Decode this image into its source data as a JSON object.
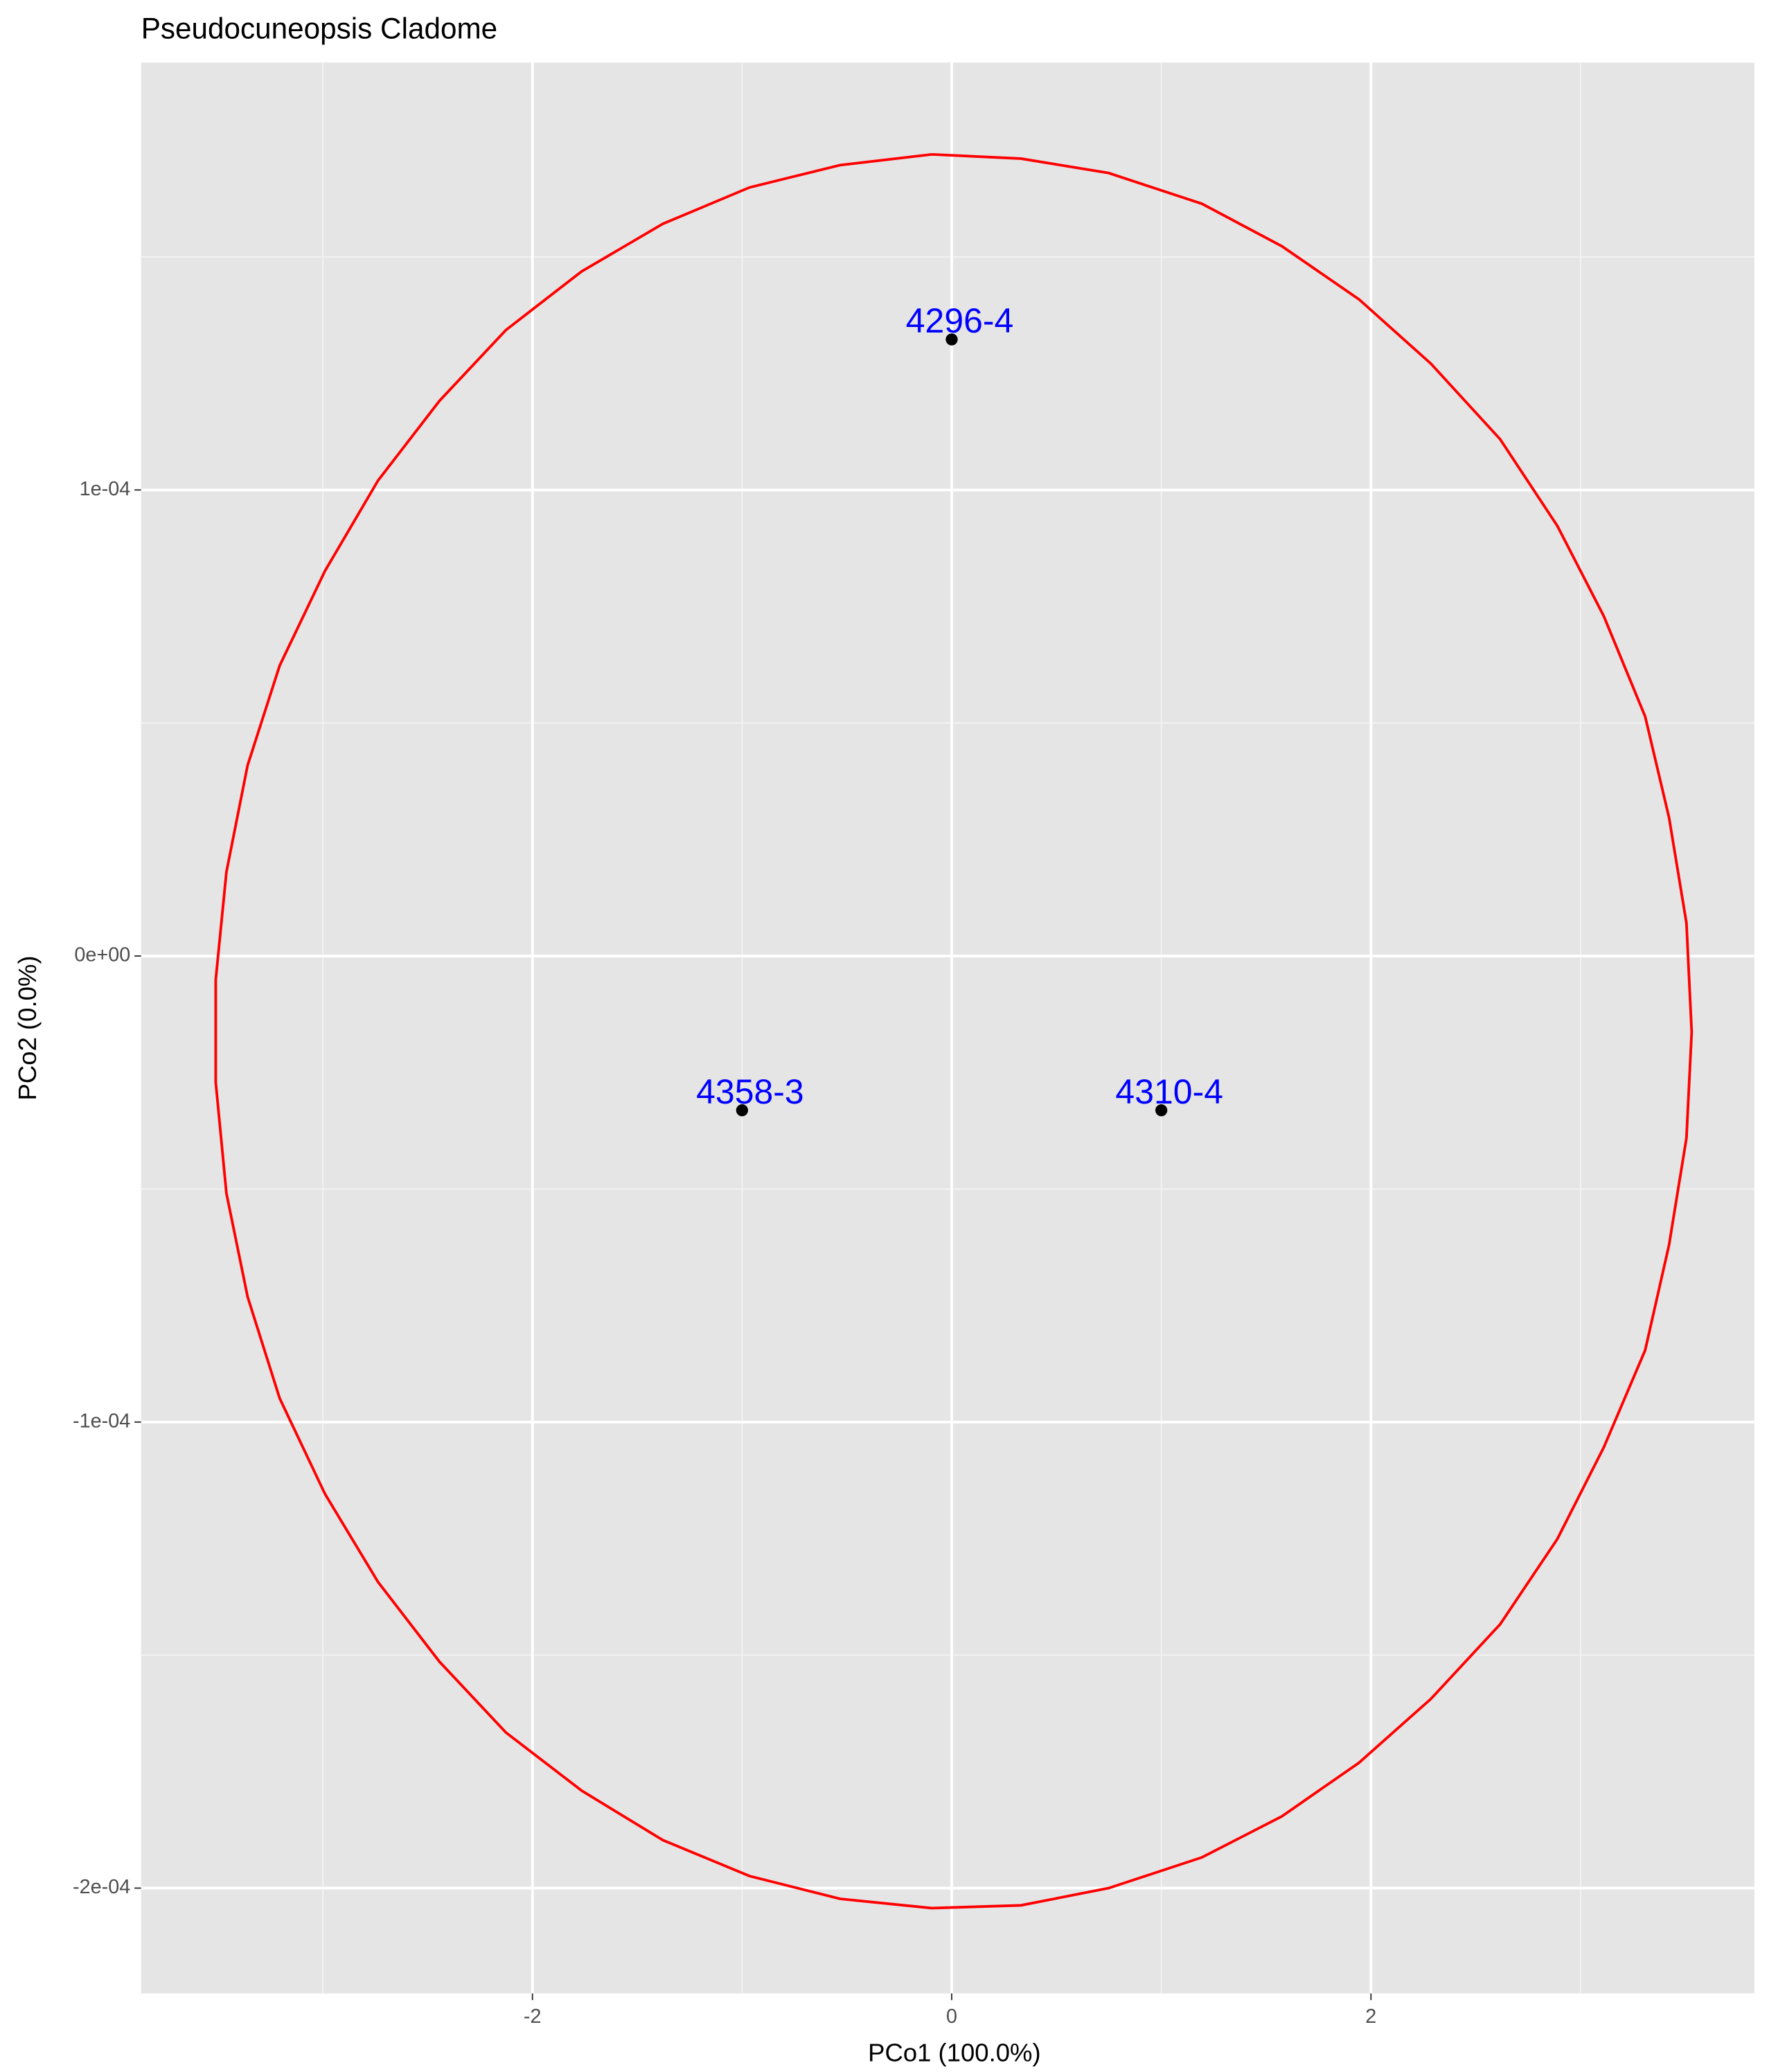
{
  "chart_data": {
    "type": "scatter",
    "title": "Pseudocuneopsis Cladome",
    "x_label": "PCo1 (100.0%)",
    "y_label": "PCo2 (0.0%)",
    "xlim": [
      -3.867,
      3.829
    ],
    "ylim": [
      -0.0002226,
      0.0001917
    ],
    "xticks": [
      -2,
      0,
      2
    ],
    "x_minor_ticks": [
      -3,
      -1,
      1,
      3
    ],
    "yticks": [
      {
        "value": -0.0002,
        "label": "-2e-04"
      },
      {
        "value": -0.0001,
        "label": "-1e-04"
      },
      {
        "value": 0,
        "label": "0e+00"
      },
      {
        "value": 0.0001,
        "label": "1e-04"
      }
    ],
    "y_minor_ticks": [
      -0.00015,
      -5e-05,
      5e-05,
      0.00015
    ],
    "grid": true,
    "point_color": "#000000",
    "label_color": "#0000ff",
    "x": [
      0,
      -1,
      1
    ],
    "values": [
      0.0001323,
      -3.31e-05,
      -3.31e-05
    ],
    "labels": [
      "4296-4",
      "4358-3",
      "4310-4"
    ],
    "ellipse": {
      "color": "#ff0000",
      "x": [
        -0.095,
        0.33,
        0.749,
        1.194,
        1.575,
        1.943,
        2.286,
        2.616,
        2.889,
        3.111,
        3.308,
        3.422,
        3.505,
        3.53,
        3.505,
        3.422,
        3.308,
        3.111,
        2.889,
        2.616,
        2.286,
        1.943,
        1.575,
        1.194,
        0.749,
        0.33,
        -0.095,
        -0.533,
        -0.965,
        -1.378,
        -1.765,
        -2.127,
        -2.444,
        -2.737,
        -2.99,
        -3.206,
        -3.359,
        -3.46,
        -3.511,
        -3.511,
        -3.46,
        -3.359,
        -3.206,
        -2.99,
        -2.737,
        -2.444,
        -2.127,
        -1.765,
        -1.378,
        -0.965,
        -0.533,
        -0.095
      ],
      "y": [
        0.000172,
        0.0001711,
        0.000168,
        0.0001614,
        0.0001523,
        0.0001409,
        0.0001271,
        0.0001109,
        9.23e-05,
        7.29e-05,
        5.14e-05,
        2.97e-05,
        7.1e-06,
        -1.63e-05,
        -3.91e-05,
        -6.2e-05,
        -8.46e-05,
        -0.0001054,
        -0.0001251,
        -0.0001434,
        -0.0001594,
        -0.0001731,
        -0.0001846,
        -0.0001934,
        -0.0002,
        -0.0002037,
        -0.0002043,
        -0.0002023,
        -0.0001974,
        -0.0001897,
        -0.0001791,
        -0.0001666,
        -0.0001514,
        -0.0001343,
        -0.0001154,
        -9.49e-05,
        -7.31e-05,
        -5.09e-05,
        -2.71e-05,
        -5.1e-06,
        1.8e-05,
        4.09e-05,
        6.23e-05,
        8.26e-05,
        0.000102,
        0.0001191,
        0.0001343,
        0.0001469,
        0.0001571,
        0.0001649,
        0.0001697,
        0.000172
      ]
    }
  }
}
